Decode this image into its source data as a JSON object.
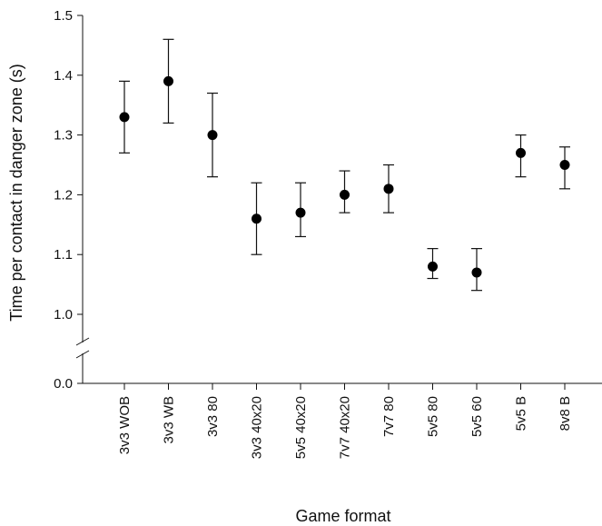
{
  "chart_data": {
    "type": "scatter",
    "title": "",
    "xlabel": "Game format",
    "ylabel": "Time per contact in danger zone (s)",
    "categories": [
      "3v3 WOB",
      "3v3 WB",
      "3v3 80",
      "3v3 40x20",
      "5v5 40x20",
      "7v7 40x20",
      "7v7 80",
      "5v5 80",
      "5v5 60",
      "5v5 B",
      "8v8 B"
    ],
    "series": [
      {
        "values": [
          1.33,
          1.39,
          1.3,
          1.16,
          1.17,
          1.2,
          1.21,
          1.08,
          1.07,
          1.27,
          1.25
        ],
        "error_low": [
          1.27,
          1.32,
          1.23,
          1.1,
          1.13,
          1.17,
          1.17,
          1.06,
          1.04,
          1.23,
          1.21
        ],
        "error_high": [
          1.39,
          1.46,
          1.37,
          1.22,
          1.22,
          1.24,
          1.25,
          1.11,
          1.11,
          1.3,
          1.28
        ]
      }
    ],
    "ylim": [
      0.0,
      1.5
    ],
    "axis_break": [
      0.0,
      1.0
    ],
    "yticks": [
      "0.0",
      "1.0",
      "1.1",
      "1.2",
      "1.3",
      "1.4",
      "1.5"
    ],
    "grid": false,
    "legend": "none"
  }
}
